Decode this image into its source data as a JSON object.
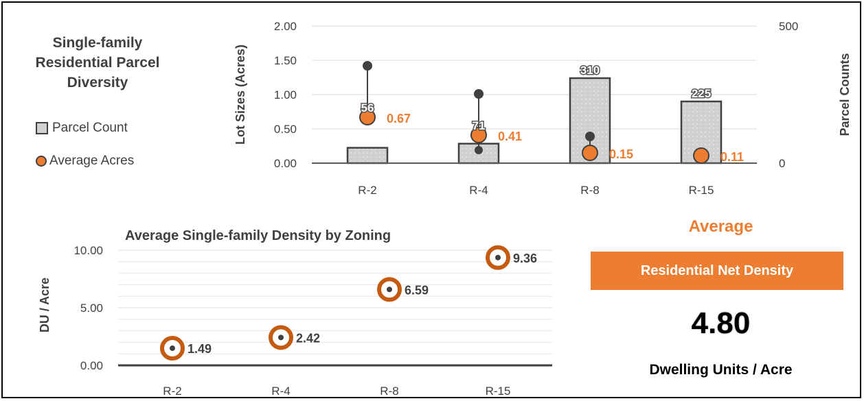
{
  "legend": {
    "title": "Single-family Residential Parcel Diversity",
    "items": [
      {
        "label": "Parcel Count",
        "icon": "gray-square-icon"
      },
      {
        "label": "Average Acres",
        "icon": "orange-dot-icon"
      }
    ]
  },
  "summary": {
    "heading": "Average",
    "box_label": "Residential Net Density",
    "value": "4.80",
    "unit": "Dwelling Units / Acre"
  },
  "colors": {
    "accent": "#ed7d31",
    "bar_fill": "#d0d0d0",
    "dark": "#404040"
  },
  "chart_data": [
    {
      "type": "bar",
      "title": "",
      "categories": [
        "R-2",
        "R-4",
        "R-8",
        "R-15"
      ],
      "ylabel": "Lot Sizes (Acres)",
      "y2label": "Parcel Counts",
      "ylim": [
        0,
        2
      ],
      "yticks": [
        "0.00",
        "0.50",
        "1.00",
        "1.50",
        "2.00"
      ],
      "y2lim": [
        0,
        500
      ],
      "y2ticks": [
        "0",
        "500"
      ],
      "grid": true,
      "series": [
        {
          "name": "Parcel Count",
          "axis": "right",
          "values": [
            56,
            71,
            310,
            225
          ],
          "labels": [
            "56",
            "71",
            "310",
            "225"
          ]
        },
        {
          "name": "Average Acres",
          "axis": "left",
          "values": [
            0.67,
            0.41,
            0.15,
            0.11
          ],
          "labels": [
            "0.67",
            "0.41",
            "0.15",
            "0.11"
          ]
        }
      ],
      "ranges": {
        "max": [
          1.42,
          1.01,
          0.39,
          null
        ],
        "min": [
          null,
          0.19,
          null,
          null
        ]
      }
    },
    {
      "type": "scatter",
      "title": "Average Single-family Density by Zoning",
      "categories": [
        "R-2",
        "R-4",
        "R-8",
        "R-15"
      ],
      "ylabel": "DU / Acre",
      "ylim": [
        0,
        10
      ],
      "yticks": [
        "0.00",
        "5.00",
        "10.00"
      ],
      "grid": true,
      "values": [
        1.49,
        2.42,
        6.59,
        9.36
      ],
      "labels": [
        "1.49",
        "2.42",
        "6.59",
        "9.36"
      ]
    }
  ]
}
